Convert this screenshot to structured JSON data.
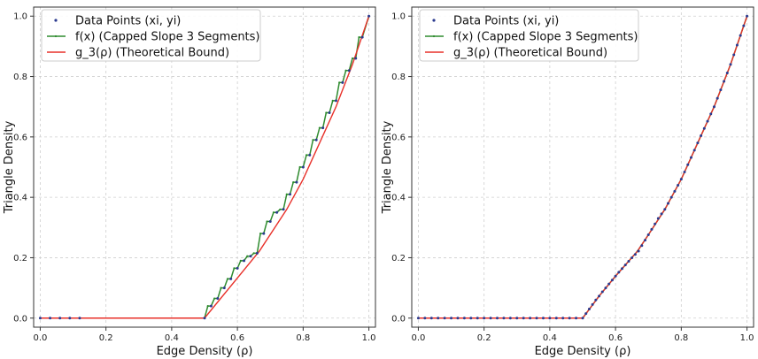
{
  "chart_data": [
    {
      "type": "line",
      "xlabel": "Edge Density (ρ)",
      "ylabel": "Triangle Density",
      "xlim": [
        -0.02,
        1.02
      ],
      "ylim": [
        -0.03,
        1.03
      ],
      "xticks": [
        "0.0",
        "0.2",
        "0.4",
        "0.6",
        "0.8",
        "1.0"
      ],
      "yticks": [
        "0.0",
        "0.2",
        "0.4",
        "0.6",
        "0.8",
        "1.0"
      ],
      "grid": true,
      "legend_position": "top-left",
      "legend": [
        "Data Points (xi, yi)",
        "f(x) (Capped Slope 3 Segments)",
        "g_3(ρ) (Theoretical Bound)"
      ],
      "colors": {
        "points": "#2b3a8f",
        "f": "#2e8b2e",
        "g": "#e8312a"
      },
      "series": [
        {
          "name": "Data Points (xi, yi)",
          "x": [
            0.0,
            0.03,
            0.06,
            0.09,
            0.12,
            0.5,
            0.52,
            0.54,
            0.56,
            0.58,
            0.6,
            0.62,
            0.64,
            0.66,
            0.68,
            0.7,
            0.72,
            0.74,
            0.76,
            0.78,
            0.8,
            0.82,
            0.84,
            0.86,
            0.88,
            0.9,
            0.92,
            0.94,
            0.96,
            0.98,
            1.0
          ],
          "y": [
            0.0,
            0.0,
            0.0,
            0.0,
            0.0,
            0.0,
            0.04,
            0.065,
            0.1,
            0.13,
            0.165,
            0.19,
            0.205,
            0.215,
            0.28,
            0.32,
            0.35,
            0.36,
            0.41,
            0.45,
            0.5,
            0.54,
            0.59,
            0.63,
            0.68,
            0.72,
            0.78,
            0.82,
            0.86,
            0.93,
            1.0
          ]
        },
        {
          "name": "f(x) (Capped Slope 3 Segments)",
          "x": [
            0.0,
            0.5,
            0.51,
            0.52,
            0.53,
            0.54,
            0.55,
            0.56,
            0.57,
            0.58,
            0.59,
            0.6,
            0.61,
            0.62,
            0.63,
            0.64,
            0.65,
            0.66,
            0.67,
            0.68,
            0.69,
            0.7,
            0.71,
            0.72,
            0.73,
            0.74,
            0.75,
            0.76,
            0.77,
            0.78,
            0.79,
            0.8,
            0.81,
            0.82,
            0.83,
            0.84,
            0.85,
            0.86,
            0.87,
            0.88,
            0.89,
            0.9,
            0.91,
            0.92,
            0.93,
            0.94,
            0.95,
            0.96,
            0.97,
            0.98,
            1.0
          ],
          "y": [
            0.0,
            0.0,
            0.04,
            0.04,
            0.065,
            0.065,
            0.1,
            0.1,
            0.13,
            0.13,
            0.165,
            0.165,
            0.19,
            0.19,
            0.205,
            0.205,
            0.215,
            0.215,
            0.28,
            0.28,
            0.32,
            0.32,
            0.35,
            0.35,
            0.36,
            0.36,
            0.41,
            0.41,
            0.45,
            0.45,
            0.5,
            0.5,
            0.54,
            0.54,
            0.59,
            0.59,
            0.63,
            0.63,
            0.68,
            0.68,
            0.72,
            0.72,
            0.78,
            0.78,
            0.82,
            0.82,
            0.86,
            0.86,
            0.93,
            0.93,
            1.0
          ]
        },
        {
          "name": "g_3(ρ) (Theoretical Bound)",
          "x": [
            0.0,
            0.5,
            0.667,
            0.75,
            0.8,
            0.85,
            0.9,
            0.95,
            1.0
          ],
          "y": [
            0.0,
            0.0,
            0.222,
            0.36,
            0.46,
            0.58,
            0.7,
            0.84,
            1.0
          ]
        }
      ]
    },
    {
      "type": "line",
      "xlabel": "Edge Density (ρ)",
      "ylabel": "Triangle Density",
      "xlim": [
        -0.02,
        1.02
      ],
      "ylim": [
        -0.03,
        1.03
      ],
      "xticks": [
        "0.0",
        "0.2",
        "0.4",
        "0.6",
        "0.8",
        "1.0"
      ],
      "yticks": [
        "0.0",
        "0.2",
        "0.4",
        "0.6",
        "0.8",
        "1.0"
      ],
      "grid": true,
      "legend_position": "top-left",
      "legend": [
        "Data Points (xi, yi)",
        "f(x) (Capped Slope 3 Segments)",
        "g_3(ρ) (Theoretical Bound)"
      ],
      "colors": {
        "points": "#2b3a8f",
        "f": "#2e8b2e",
        "g": "#e8312a"
      },
      "series": [
        {
          "name": "Data Points (xi, yi)",
          "x": [
            0.0,
            0.02,
            0.04,
            0.06,
            0.08,
            0.1,
            0.12,
            0.14,
            0.16,
            0.18,
            0.2,
            0.22,
            0.24,
            0.26,
            0.28,
            0.3,
            0.32,
            0.34,
            0.36,
            0.38,
            0.4,
            0.42,
            0.44,
            0.46,
            0.48,
            0.5,
            0.51,
            0.52,
            0.53,
            0.54,
            0.55,
            0.56,
            0.57,
            0.58,
            0.59,
            0.6,
            0.61,
            0.62,
            0.63,
            0.64,
            0.65,
            0.66,
            0.67,
            0.68,
            0.69,
            0.7,
            0.71,
            0.72,
            0.73,
            0.74,
            0.75,
            0.76,
            0.77,
            0.78,
            0.79,
            0.8,
            0.81,
            0.82,
            0.83,
            0.84,
            0.85,
            0.86,
            0.87,
            0.88,
            0.89,
            0.9,
            0.91,
            0.92,
            0.93,
            0.94,
            0.95,
            0.96,
            0.97,
            0.98,
            0.99,
            1.0
          ],
          "y": [
            0.0,
            0.0,
            0.0,
            0.0,
            0.0,
            0.0,
            0.0,
            0.0,
            0.0,
            0.0,
            0.0,
            0.0,
            0.0,
            0.0,
            0.0,
            0.0,
            0.0,
            0.0,
            0.0,
            0.0,
            0.0,
            0.0,
            0.0,
            0.0,
            0.0,
            0.0,
            0.015,
            0.03,
            0.045,
            0.06,
            0.073,
            0.087,
            0.1,
            0.113,
            0.126,
            0.139,
            0.152,
            0.164,
            0.176,
            0.188,
            0.2,
            0.211,
            0.222,
            0.24,
            0.258,
            0.276,
            0.294,
            0.312,
            0.33,
            0.345,
            0.36,
            0.38,
            0.4,
            0.42,
            0.44,
            0.46,
            0.484,
            0.508,
            0.532,
            0.556,
            0.58,
            0.604,
            0.628,
            0.652,
            0.676,
            0.7,
            0.728,
            0.756,
            0.784,
            0.812,
            0.84,
            0.872,
            0.904,
            0.936,
            0.968,
            1.0
          ]
        },
        {
          "name": "f(x) (Capped Slope 3 Segments)",
          "x": [
            0.0,
            0.5,
            0.55,
            0.6,
            0.667,
            0.7,
            0.75,
            0.8,
            0.85,
            0.9,
            0.95,
            1.0
          ],
          "y": [
            0.0,
            0.0,
            0.073,
            0.139,
            0.222,
            0.276,
            0.36,
            0.46,
            0.58,
            0.7,
            0.84,
            1.0
          ]
        },
        {
          "name": "g_3(ρ) (Theoretical Bound)",
          "x": [
            0.0,
            0.5,
            0.55,
            0.6,
            0.667,
            0.7,
            0.75,
            0.8,
            0.85,
            0.9,
            0.95,
            1.0
          ],
          "y": [
            0.0,
            0.0,
            0.073,
            0.139,
            0.222,
            0.276,
            0.36,
            0.46,
            0.58,
            0.7,
            0.84,
            1.0
          ]
        }
      ]
    }
  ]
}
